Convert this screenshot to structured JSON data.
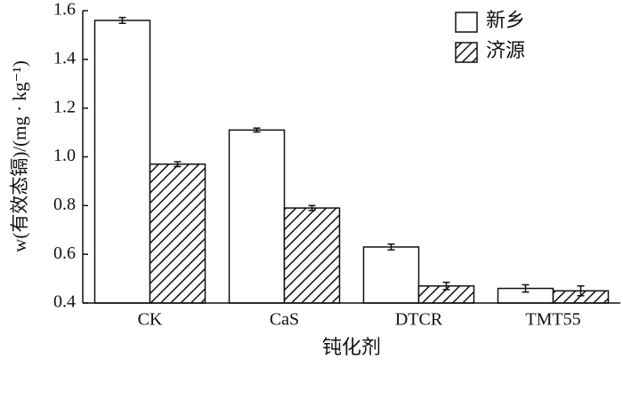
{
  "chart_data": {
    "type": "bar",
    "ylabel": "w(有效态镉)/(mg · kg⁻¹)",
    "xlabel": "钝化剂",
    "categories": [
      "CK",
      "CaS",
      "DTCR",
      "TMT55"
    ],
    "series": [
      {
        "name": "新乡",
        "color": "#ffffff",
        "pattern": "solid",
        "values": [
          1.56,
          1.11,
          0.63,
          0.46
        ],
        "errors": [
          0.012,
          0.008,
          0.012,
          0.015
        ]
      },
      {
        "name": "济源",
        "color": "#ffffff",
        "pattern": "hatch",
        "values": [
          0.97,
          0.79,
          0.47,
          0.45
        ],
        "errors": [
          0.01,
          0.01,
          0.015,
          0.02
        ]
      }
    ],
    "ylim": [
      0.4,
      1.6
    ],
    "yticks": [
      {
        "value": 0.4,
        "label": "0.4"
      },
      {
        "value": 0.6,
        "label": "0.6"
      },
      {
        "value": 0.8,
        "label": "0.8"
      },
      {
        "value": 1.0,
        "label": "1.0"
      },
      {
        "value": 1.2,
        "label": "1.2"
      },
      {
        "value": 1.4,
        "label": "1.4"
      },
      {
        "value": 1.6,
        "label": "1.6"
      }
    ],
    "legend": "upper right"
  }
}
